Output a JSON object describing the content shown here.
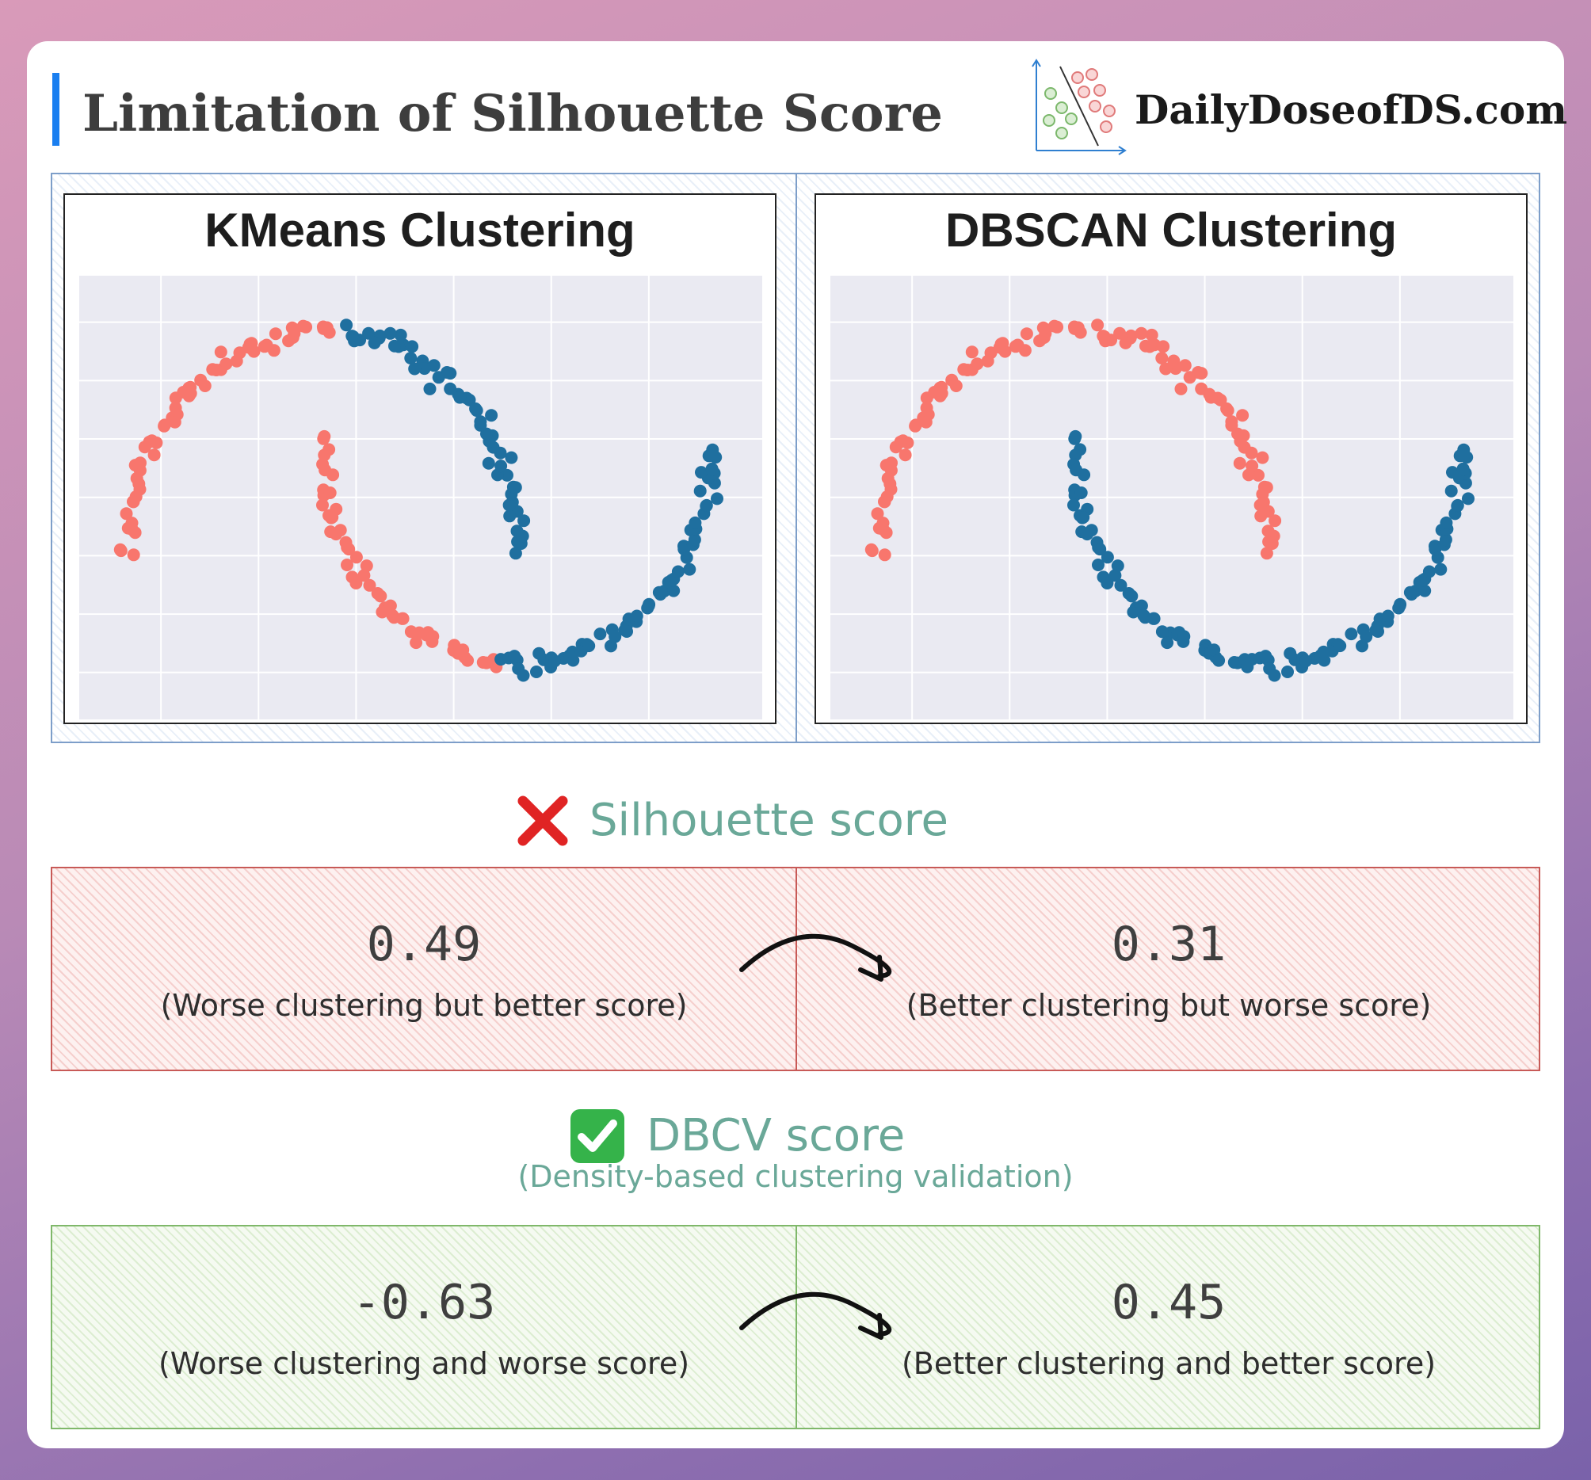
{
  "header": {
    "title": "Limitation of Silhouette Score",
    "brand": "DailyDoseofDS.com"
  },
  "plots": {
    "left_title": "KMeans Clustering",
    "right_title": "DBSCAN Clustering"
  },
  "silhouette": {
    "heading": "Silhouette score",
    "icon": "cross-mark-icon",
    "left_value": "0.49",
    "left_note": "(Worse clustering but better score)",
    "right_value": "0.31",
    "right_note": "(Better clustering but worse score)"
  },
  "dbcv": {
    "heading": "DBCV score",
    "subheading": "(Density-based clustering validation)",
    "icon": "check-mark-icon",
    "left_value": "-0.63",
    "left_note": "(Worse clustering and worse score)",
    "right_value": "0.45",
    "right_note": "(Better clustering and better score)"
  },
  "colors": {
    "accent": "#1a7ff0",
    "cluster_a": "#f8766d",
    "cluster_b": "#1f6f9f",
    "heading": "#6aa898",
    "bad_border": "#c85a57",
    "good_border": "#7fb86a",
    "plot_bg": "#eaeaf2"
  }
}
